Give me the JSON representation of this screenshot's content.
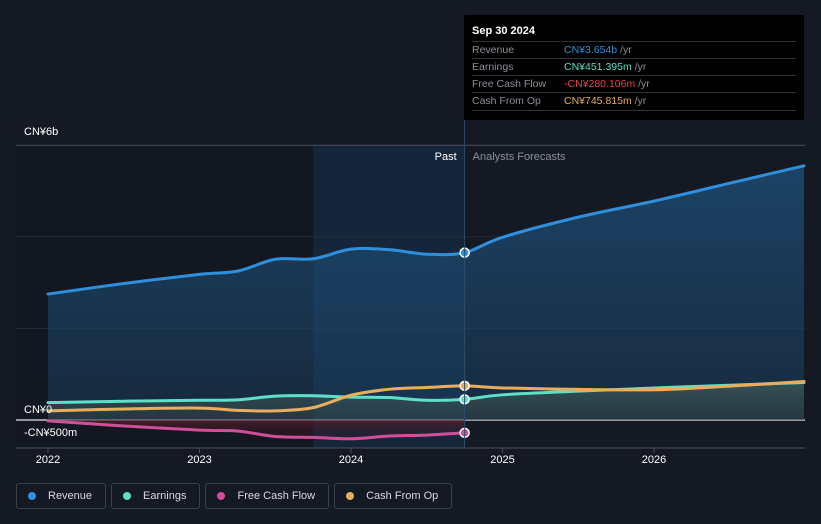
{
  "chart_data": {
    "type": "line",
    "title": "",
    "xlabel": "",
    "ylabel": "",
    "y_unit": "CN¥ billions",
    "ylim": [
      -0.5,
      6
    ],
    "xlim": [
      2022,
      2026.99
    ],
    "y_tick_labels": [
      {
        "value": 6,
        "label": "CN¥6b"
      },
      {
        "value": 0,
        "label": "CN¥0"
      },
      {
        "value": -0.5,
        "label": "-CN¥500m"
      }
    ],
    "x_ticks": [
      2022,
      2023,
      2024,
      2025,
      2026
    ],
    "x_tick_labels": [
      "2022",
      "2023",
      "2024",
      "2025",
      "2026"
    ],
    "grid": true,
    "past_label": "Past",
    "forecast_label": "Analysts Forecasts",
    "divider_x": 2024.75,
    "shaded_region_start": 2023.75,
    "legend_position": "bottom-left",
    "series": [
      {
        "name": "Revenue",
        "color": "#2e8fdc",
        "points": [
          [
            2022.0,
            2.75
          ],
          [
            2022.5,
            2.98
          ],
          [
            2023.0,
            3.18
          ],
          [
            2023.25,
            3.25
          ],
          [
            2023.5,
            3.51
          ],
          [
            2023.75,
            3.52
          ],
          [
            2024.0,
            3.73
          ],
          [
            2024.25,
            3.72
          ],
          [
            2024.5,
            3.62
          ],
          [
            2024.75,
            3.654
          ],
          [
            2025.0,
            3.99
          ],
          [
            2025.5,
            4.43
          ],
          [
            2026.0,
            4.78
          ],
          [
            2026.5,
            5.17
          ],
          [
            2026.99,
            5.55
          ]
        ]
      },
      {
        "name": "Earnings",
        "color": "#5ce0c8",
        "points": [
          [
            2022.0,
            0.38
          ],
          [
            2022.5,
            0.41
          ],
          [
            2023.0,
            0.43
          ],
          [
            2023.25,
            0.44
          ],
          [
            2023.5,
            0.52
          ],
          [
            2023.75,
            0.53
          ],
          [
            2024.0,
            0.5
          ],
          [
            2024.25,
            0.49
          ],
          [
            2024.5,
            0.43
          ],
          [
            2024.75,
            0.451
          ],
          [
            2025.0,
            0.55
          ],
          [
            2025.5,
            0.63
          ],
          [
            2026.0,
            0.7
          ],
          [
            2026.5,
            0.76
          ],
          [
            2026.99,
            0.82
          ]
        ]
      },
      {
        "name": "Free Cash Flow",
        "color": "#d04f98",
        "points": [
          [
            2022.0,
            -0.02
          ],
          [
            2022.5,
            -0.13
          ],
          [
            2023.0,
            -0.22
          ],
          [
            2023.25,
            -0.24
          ],
          [
            2023.5,
            -0.36
          ],
          [
            2023.75,
            -0.38
          ],
          [
            2024.0,
            -0.41
          ],
          [
            2024.25,
            -0.35
          ],
          [
            2024.5,
            -0.33
          ],
          [
            2024.75,
            -0.28
          ]
        ]
      },
      {
        "name": "Cash From Op",
        "color": "#e8ae5b",
        "points": [
          [
            2022.0,
            0.2
          ],
          [
            2022.5,
            0.24
          ],
          [
            2023.0,
            0.26
          ],
          [
            2023.25,
            0.21
          ],
          [
            2023.5,
            0.2
          ],
          [
            2023.75,
            0.27
          ],
          [
            2024.0,
            0.54
          ],
          [
            2024.25,
            0.67
          ],
          [
            2024.5,
            0.71
          ],
          [
            2024.75,
            0.746
          ],
          [
            2025.0,
            0.7
          ],
          [
            2025.5,
            0.67
          ],
          [
            2026.0,
            0.66
          ],
          [
            2026.5,
            0.74
          ],
          [
            2026.99,
            0.84
          ]
        ]
      }
    ]
  },
  "tooltip": {
    "date": "Sep 30 2024",
    "rows": [
      {
        "label": "Revenue",
        "value": "CN¥3.654b",
        "unit": " /yr",
        "color": "#2e8fdc"
      },
      {
        "label": "Earnings",
        "value": "CN¥451.395m",
        "unit": " /yr",
        "color": "#5ce0c8"
      },
      {
        "label": "Free Cash Flow",
        "value": "-CN¥280.106m",
        "unit": " /yr",
        "color": "#e64646"
      },
      {
        "label": "Cash From Op",
        "value": "CN¥745.815m",
        "unit": " /yr",
        "color": "#e8ae5b"
      }
    ]
  },
  "legend": [
    {
      "label": "Revenue",
      "color": "#2e8fdc"
    },
    {
      "label": "Earnings",
      "color": "#5ce0c8"
    },
    {
      "label": "Free Cash Flow",
      "color": "#d04f98"
    },
    {
      "label": "Cash From Op",
      "color": "#e8ae5b"
    }
  ]
}
